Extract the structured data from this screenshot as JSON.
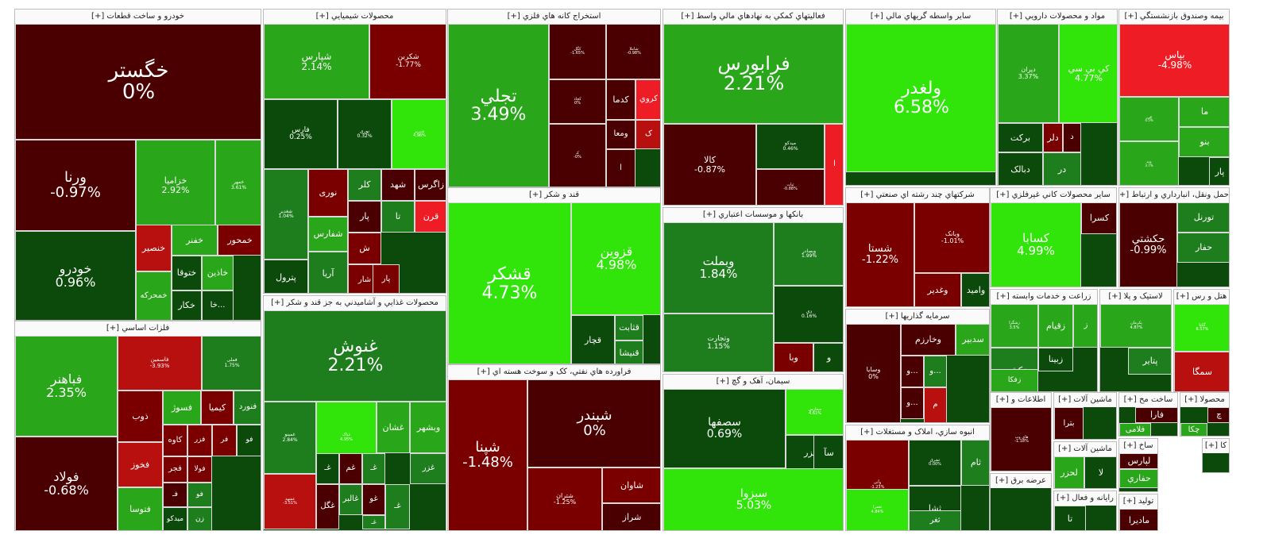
{
  "colors": {
    "dark_red": "#4a0000",
    "mid_red": "#7a0000",
    "bright_red": "#ee1c24",
    "red": "#b80f0f",
    "dark_green": "#0c4a0c",
    "mid_green": "#1e7e1e",
    "green": "#2aa61a",
    "bright_green": "#31e50a",
    "light_green": "#4ad12a"
  },
  "sectors": [
    {
      "title": "خودرو و ساخت قطعات [+]",
      "tiles": [
        {
          "symbol": "خگستر",
          "pct": "0%",
          "color": "dark_red"
        },
        {
          "symbol": "ورنا",
          "pct": "-0.97%",
          "color": "dark_red"
        },
        {
          "symbol": "خزامیا",
          "pct": "2.92%",
          "color": "green"
        },
        {
          "symbol": "خمهر",
          "pct": "3.61%",
          "color": "green"
        },
        {
          "symbol": "خودرو",
          "pct": "0.96%",
          "color": "dark_green"
        },
        {
          "symbol": "خنصیر",
          "color": "red"
        },
        {
          "symbol": "خفنر",
          "color": "green"
        },
        {
          "symbol": "خمحور",
          "color": "mid_red"
        },
        {
          "symbol": "ختوقا",
          "color": "dark_green"
        },
        {
          "symbol": "خاذین",
          "color": "green"
        },
        {
          "symbol": "خمحرکه",
          "color": "green"
        },
        {
          "symbol": "خکار",
          "color": "dark_green"
        },
        {
          "symbol": "خا...",
          "color": "dark_green"
        }
      ]
    },
    {
      "title": "فلزات اساسي [+]",
      "tiles": [
        {
          "symbol": "فباهنر",
          "pct": "2.35%",
          "color": "green"
        },
        {
          "symbol": "فولاد",
          "pct": "-0.68%",
          "color": "dark_red"
        },
        {
          "symbol": "فاسمین",
          "pct": "-3.93%",
          "color": "red"
        },
        {
          "symbol": "فملی",
          "pct": "1.75%",
          "color": "mid_green"
        },
        {
          "symbol": "ذوب",
          "color": "mid_red"
        },
        {
          "symbol": "فسوژ",
          "color": "green"
        },
        {
          "symbol": "کیمیا",
          "color": "mid_red"
        },
        {
          "symbol": "فنورد",
          "color": "mid_green"
        },
        {
          "symbol": "فخوز",
          "color": "red"
        },
        {
          "symbol": "کاوه",
          "color": "mid_red"
        },
        {
          "symbol": "فزر",
          "color": "mid_red"
        },
        {
          "symbol": "فر",
          "color": "mid_red"
        },
        {
          "symbol": "فو",
          "color": "dark_green"
        },
        {
          "symbol": "فتوسا",
          "color": "green"
        },
        {
          "symbol": "فجر",
          "color": "mid_red"
        },
        {
          "symbol": "فولا",
          "color": "mid_red"
        },
        {
          "symbol": "فـ",
          "color": "dark_red"
        },
        {
          "symbol": "فو",
          "color": "mid_green"
        },
        {
          "symbol": "میدکو",
          "color": "dark_green"
        },
        {
          "symbol": "زن",
          "color": "mid_green"
        }
      ]
    },
    {
      "title": "محصولات شيميايي [+]",
      "tiles": [
        {
          "symbol": "شپارس",
          "pct": "2.14%",
          "color": "green"
        },
        {
          "symbol": "شکربن",
          "pct": "-1.77%",
          "color": "mid_red"
        },
        {
          "symbol": "فارس",
          "pct": "0.25%",
          "color": "dark_green"
        },
        {
          "symbol": "نوری",
          "pct": "0.32%",
          "color": "dark_green"
        },
        {
          "symbol": "شبریز",
          "pct": "4.96%",
          "color": "bright_green"
        },
        {
          "symbol": "شغدیر",
          "pct": "1.04%",
          "color": "mid_green"
        },
        {
          "symbol": "نوری",
          "color": "mid_red"
        },
        {
          "symbol": "کلر",
          "color": "mid_green"
        },
        {
          "symbol": "شهد",
          "color": "dark_red"
        },
        {
          "symbol": "زاگرس",
          "color": "dark_red"
        },
        {
          "symbol": "شفارس",
          "color": "green"
        },
        {
          "symbol": "تا",
          "color": "mid_green"
        },
        {
          "symbol": "قرن",
          "color": "bright_red"
        },
        {
          "symbol": "پار",
          "color": "dark_red"
        },
        {
          "symbol": "ش",
          "color": "mid_red"
        },
        {
          "symbol": "پترول",
          "color": "dark_green"
        },
        {
          "symbol": "آریا",
          "color": "mid_green"
        },
        {
          "symbol": "جم",
          "color": "dark_red"
        },
        {
          "symbol": "شار",
          "color": "mid_red"
        },
        {
          "symbol": "پار",
          "color": "mid_red"
        }
      ]
    },
    {
      "title": "محصولات غذايي و آشاميدني به جز قند و شکر [+]",
      "tiles": [
        {
          "symbol": "غنوش",
          "pct": "2.21%",
          "color": "mid_green"
        },
        {
          "symbol": "غمینو",
          "pct": "2.84%",
          "color": "mid_green"
        },
        {
          "symbol": "غپاک",
          "pct": "4.95%",
          "color": "bright_green"
        },
        {
          "symbol": "غشان",
          "color": "green"
        },
        {
          "symbol": "وبشهر",
          "color": "green"
        },
        {
          "symbol": "غشهد",
          "pct": "-3.51%",
          "color": "red"
        },
        {
          "symbol": "غـ",
          "color": "dark_green"
        },
        {
          "symbol": "غم",
          "color": "dark_red"
        },
        {
          "symbol": "غـ",
          "color": "mid_green"
        },
        {
          "symbol": "غزر",
          "color": "mid_green"
        },
        {
          "symbol": "غالبر",
          "color": "mid_green"
        },
        {
          "symbol": "غو",
          "color": "dark_red"
        },
        {
          "symbol": "غگل",
          "color": "dark_red"
        },
        {
          "symbol": "غـ",
          "color": "mid_green"
        },
        {
          "symbol": "غـ",
          "color": "mid_green"
        }
      ]
    },
    {
      "title": "استخراج کانه هاي فلزي [+]",
      "tiles": [
        {
          "symbol": "تجلي",
          "pct": "3.49%",
          "color": "green"
        },
        {
          "symbol": "کگل",
          "pct": "-1.65%",
          "color": "dark_red"
        },
        {
          "symbol": "شاملا",
          "pct": "-0.98%",
          "color": "dark_red"
        },
        {
          "symbol": "کچاد",
          "pct": "0%",
          "color": "dark_red"
        },
        {
          "symbol": "کدما",
          "color": "dark_red"
        },
        {
          "symbol": "کروي",
          "color": "bright_red"
        },
        {
          "symbol": "کـ",
          "pct": "-0%",
          "color": "dark_red"
        },
        {
          "symbol": "ومعا",
          "color": "dark_red"
        },
        {
          "symbol": "ک",
          "color": "red"
        },
        {
          "symbol": "ا",
          "color": "dark_red"
        }
      ]
    },
    {
      "title": "قند و شکر [+]",
      "tiles": [
        {
          "symbol": "قشکر",
          "pct": "4.73%",
          "color": "bright_green"
        },
        {
          "symbol": "قزوین",
          "pct": "4.98%",
          "color": "bright_green"
        },
        {
          "symbol": "قچار",
          "color": "dark_green"
        },
        {
          "symbol": "قثابت",
          "color": "mid_green"
        },
        {
          "symbol": "قنیشا",
          "color": "mid_green"
        }
      ]
    },
    {
      "title": "فراورده هاي نفتي، کک و سوخت هسته اي [+]",
      "tiles": [
        {
          "symbol": "شپنا",
          "pct": "-1.48%",
          "color": "mid_red"
        },
        {
          "symbol": "شبندر",
          "pct": "0%",
          "color": "dark_red"
        },
        {
          "symbol": "شتران",
          "pct": "-1.25%",
          "color": "mid_red"
        },
        {
          "symbol": "شاوان",
          "color": "mid_red"
        },
        {
          "symbol": "شراز",
          "color": "dark_red"
        }
      ]
    },
    {
      "title": "فعاليتهاي کمکي به نهادهاي مالي واسط [+]",
      "tiles": [
        {
          "symbol": "فرابورس",
          "pct": "2.21%",
          "color": "green"
        },
        {
          "symbol": "کالا",
          "pct": "-0.87%",
          "color": "dark_red"
        },
        {
          "symbol": "میدکو",
          "pct": "0.46%",
          "color": "dark_green"
        },
        {
          "symbol": "ثبات",
          "pct": "-0.88%",
          "color": "dark_red"
        },
        {
          "symbol": "ا",
          "color": "bright_red"
        }
      ]
    },
    {
      "title": "بانکها و موسسات اعتباري [+]",
      "tiles": [
        {
          "symbol": "وبملت",
          "pct": "1.84%",
          "color": "mid_green"
        },
        {
          "symbol": "وبصادر",
          "pct": "1.99%",
          "color": "mid_green"
        },
        {
          "symbol": "وتجارت",
          "pct": "1.15%",
          "color": "mid_green"
        },
        {
          "symbol": "دی",
          "pct": "0.16%",
          "color": "dark_green"
        },
        {
          "symbol": "وبا",
          "color": "mid_red"
        },
        {
          "symbol": "و",
          "color": "dark_green"
        }
      ]
    },
    {
      "title": "سيمان، آهک و گچ [+]",
      "tiles": [
        {
          "symbol": "سصفها",
          "pct": "0.69%",
          "color": "dark_green"
        },
        {
          "symbol": "سفارس",
          "pct": "4.61%",
          "color": "bright_green"
        },
        {
          "symbol": "سخزر",
          "color": "dark_green"
        },
        {
          "symbol": "سآ",
          "color": "dark_green"
        },
        {
          "symbol": "سبزوا",
          "pct": "5.03%",
          "color": "bright_green"
        }
      ]
    },
    {
      "title": "ساير واسطه گريهاي مالي [+]",
      "tiles": [
        {
          "symbol": "ولغدر",
          "pct": "6.58%",
          "color": "bright_green"
        }
      ]
    },
    {
      "title": "شرکتهاي چند رشته اي صنعتي [+]",
      "tiles": [
        {
          "symbol": "شستا",
          "pct": "-1.22%",
          "color": "mid_red"
        },
        {
          "symbol": "وبانک",
          "pct": "-1.01%",
          "color": "mid_red"
        },
        {
          "symbol": "وغدير",
          "color": "mid_red"
        },
        {
          "symbol": "وامید",
          "color": "dark_green"
        }
      ]
    },
    {
      "title": "سرمايه گذاريها [+]",
      "tiles": [
        {
          "symbol": "وسایا",
          "pct": "0%",
          "color": "dark_red"
        },
        {
          "symbol": "وخارزم",
          "color": "dark_red"
        },
        {
          "symbol": "سدبير",
          "color": "green"
        },
        {
          "symbol": "و...",
          "color": "dark_red"
        },
        {
          "symbol": "و...",
          "color": "dark_red"
        },
        {
          "symbol": "م",
          "color": "red"
        },
        {
          "symbol": "و...",
          "color": "mid_green"
        }
      ]
    },
    {
      "title": "انبوه سازي، املاک و مستغلات [+]",
      "tiles": [
        {
          "symbol": "وآتی",
          "pct": "-1.23%",
          "color": "mid_red"
        },
        {
          "symbol": "ثشرق",
          "pct": "0.00%",
          "color": "dark_green"
        },
        {
          "symbol": "ثام",
          "color": "mid_green"
        },
        {
          "symbol": "ثشا",
          "color": "dark_green"
        },
        {
          "symbol": "ثعمرا",
          "pct": "4.84%",
          "color": "bright_green"
        },
        {
          "symbol": "ثغر",
          "color": "mid_green"
        }
      ]
    },
    {
      "title": "مواد و محصولات دارويي [+]",
      "tiles": [
        {
          "symbol": "دپران",
          "pct": "3.37%",
          "color": "green"
        },
        {
          "symbol": "کي بي سي",
          "pct": "4.77%",
          "color": "bright_green"
        },
        {
          "symbol": "برکت",
          "color": "dark_green"
        },
        {
          "symbol": "دلر",
          "color": "mid_red"
        },
        {
          "symbol": "د",
          "color": "dark_red"
        },
        {
          "symbol": "دبالک",
          "color": "dark_green"
        },
        {
          "symbol": "در",
          "color": "mid_green"
        }
      ]
    },
    {
      "title": "ساير محصولات کاني غيرفلزي [+]",
      "tiles": [
        {
          "symbol": "کسابا",
          "pct": "4.99%",
          "color": "bright_green"
        },
        {
          "symbol": "کسرا",
          "color": "dark_red"
        }
      ]
    },
    {
      "title": "زراعت و خدمات وابسته [+]",
      "tiles": [
        {
          "symbol": "زشگزا",
          "pct": "3.5%",
          "color": "green"
        },
        {
          "symbol": "زقيام",
          "color": "green"
        },
        {
          "symbol": "ز",
          "color": "green"
        },
        {
          "symbol": "زکشت",
          "color": "mid_green"
        },
        {
          "symbol": "زفکا",
          "color": "green"
        },
        {
          "symbol": "زبينا",
          "color": "dark_green"
        }
      ]
    },
    {
      "title": "اطلاعات و [+]",
      "tiles": [
        {
          "symbol": "های وب",
          "pct": "-1.18%",
          "color": "dark_red"
        }
      ]
    },
    {
      "title": "عرضه برق [+]",
      "tiles": []
    },
    {
      "title": "بيمه وصندوق بازنشستگي [+]",
      "tiles": [
        {
          "symbol": "بپاس",
          "pct": "-4.98%",
          "color": "bright_red"
        },
        {
          "symbol": "ما",
          "color": "green"
        },
        {
          "symbol": "بنو",
          "color": "green"
        },
        {
          "symbol": "پار",
          "color": "dark_green"
        },
        {
          "symbol": "البرز",
          "pct": "4.5%",
          "color": "green"
        },
        {
          "symbol": "ومه",
          "pct": "3.7%",
          "color": "green"
        }
      ]
    },
    {
      "title": "حمل ونقل، انبارداري و ارتباط [+]",
      "tiles": [
        {
          "symbol": "حکشتي",
          "pct": "-0.99%",
          "color": "dark_red"
        },
        {
          "symbol": "تورنل",
          "color": "mid_green"
        },
        {
          "symbol": "حفار",
          "color": "mid_green"
        }
      ]
    },
    {
      "title": "لاستيک و پلا [+]",
      "tiles": [
        {
          "symbol": "پکرمان",
          "pct": "4.87%",
          "color": "green"
        },
        {
          "symbol": "پتاير",
          "color": "mid_green"
        }
      ]
    },
    {
      "title": "هتل و رس [+]",
      "tiles": [
        {
          "symbol": "گکيا",
          "pct": "6.57%",
          "color": "bright_green"
        },
        {
          "symbol": "سمگا",
          "color": "red"
        }
      ]
    },
    {
      "title": "ماشين آلات [+]",
      "tiles": [
        {
          "symbol": "بترا",
          "color": "dark_red"
        }
      ]
    },
    {
      "title": "ماشين آلات [+]",
      "tiles": [
        {
          "symbol": "لحزر",
          "color": "green"
        },
        {
          "symbol": "لا",
          "color": "dark_green"
        }
      ]
    },
    {
      "title": "رايانه و فعال [+]",
      "tiles": [
        {
          "symbol": "تا",
          "color": "dark_green"
        }
      ]
    },
    {
      "title": "ساخت مح [+]",
      "tiles": [
        {
          "symbol": "فارا",
          "color": "dark_red"
        },
        {
          "symbol": "فلامی",
          "color": "green"
        }
      ]
    },
    {
      "title": "محصولا [+]",
      "tiles": [
        {
          "symbol": "چ",
          "color": "dark_red"
        },
        {
          "symbol": "چکا",
          "color": "green"
        }
      ]
    },
    {
      "title": "ساخ [+]",
      "tiles": [
        {
          "symbol": "لپارس",
          "color": "dark_red"
        },
        {
          "symbol": "حفاري",
          "color": "green"
        }
      ]
    },
    {
      "title": "کا [+]",
      "tiles": []
    },
    {
      "title": "تولید [+]",
      "tiles": [
        {
          "symbol": "مادیرا",
          "color": "dark_red"
        }
      ]
    }
  ]
}
